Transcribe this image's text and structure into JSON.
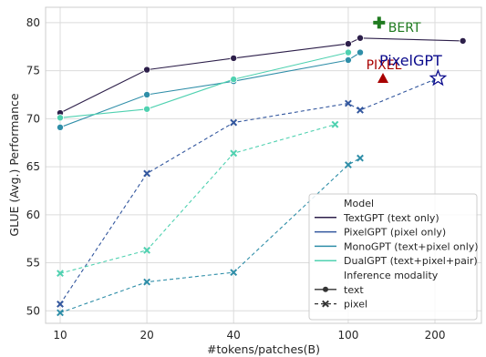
{
  "chart_data": {
    "type": "line",
    "xlabel": "#tokens/patches(B)",
    "ylabel": "GLUE (Avg.) Performance",
    "x_scale": "log",
    "x_ticks": [
      {
        "value": 10,
        "label": "10"
      },
      {
        "value": 20,
        "label": "20"
      },
      {
        "value": 40,
        "label": "40"
      },
      {
        "value": 100,
        "label": "100"
      },
      {
        "value": 200,
        "label": "200"
      }
    ],
    "y_ticks": [
      {
        "value": 50,
        "label": "50"
      },
      {
        "value": 55,
        "label": "55"
      },
      {
        "value": 60,
        "label": "60"
      },
      {
        "value": 65,
        "label": "65"
      },
      {
        "value": 70,
        "label": "70"
      },
      {
        "value": 75,
        "label": "75"
      },
      {
        "value": 80,
        "label": "80"
      }
    ],
    "xlim": [
      8.9,
      290
    ],
    "ylim": [
      48.7,
      81.6
    ],
    "grid": true,
    "legend_placement": "lower-right",
    "legend": {
      "title": "Model",
      "entries": [
        "TextGPT (text only)",
        "PixelGPT (pixel only)",
        "MonoGPT (text+pixel only)",
        "DualGPT (text+pixel+pair)"
      ],
      "style_title": "Inference modality",
      "style_entries": [
        "text",
        "pixel"
      ]
    },
    "colors": {
      "TextGPT": "#2d1f4a",
      "PixelGPT": "#33579e",
      "MonoGPT": "#2f8ea8",
      "DualGPT": "#4fd1b0",
      "BERT": "#1f7a1f",
      "PIXEL": "#a80000",
      "PixelGPT_annotation": "#0a0a8c"
    },
    "series": [
      {
        "name": "TextGPT (text only)",
        "color_key": "TextGPT",
        "modality": "text",
        "x": [
          10,
          20,
          40,
          100,
          110,
          250
        ],
        "y": [
          70.6,
          75.1,
          76.3,
          77.8,
          78.4,
          78.1
        ]
      },
      {
        "name": "PixelGPT (pixel only)",
        "color_key": "PixelGPT",
        "modality": "pixel",
        "x": [
          10,
          20,
          40,
          100,
          110,
          200
        ],
        "y": [
          50.7,
          64.3,
          69.6,
          71.6,
          70.9,
          74.1
        ]
      },
      {
        "name": "MonoGPT (text+pixel only)",
        "color_key": "MonoGPT",
        "modality": "text",
        "x": [
          10,
          20,
          40,
          100,
          110
        ],
        "y": [
          69.1,
          72.5,
          73.9,
          76.1,
          76.9
        ]
      },
      {
        "name": "MonoGPT (text+pixel only)",
        "color_key": "MonoGPT",
        "modality": "pixel",
        "x": [
          10,
          20,
          40,
          100,
          110
        ],
        "y": [
          49.8,
          53.0,
          54.0,
          65.2,
          65.9
        ]
      },
      {
        "name": "DualGPT (text+pixel+pair)",
        "color_key": "DualGPT",
        "modality": "text",
        "x": [
          10,
          20,
          40,
          100
        ],
        "y": [
          70.1,
          71.0,
          74.1,
          76.9
        ]
      },
      {
        "name": "DualGPT (text+pixel+pair)",
        "color_key": "DualGPT",
        "modality": "pixel",
        "x": [
          10,
          20,
          40,
          90
        ],
        "y": [
          53.9,
          56.3,
          66.4,
          69.4
        ]
      }
    ],
    "annotations": [
      {
        "label": "BERT",
        "marker": "plus",
        "color_key": "BERT",
        "x": 128,
        "y": 80.0
      },
      {
        "label": "PIXEL",
        "marker": "triangle",
        "color_key": "PIXEL",
        "x": 132,
        "y": 74.2
      },
      {
        "label": "PixelGPT",
        "marker": "star",
        "color_key": "PixelGPT_annotation",
        "x": 205,
        "y": 74.2
      }
    ]
  }
}
